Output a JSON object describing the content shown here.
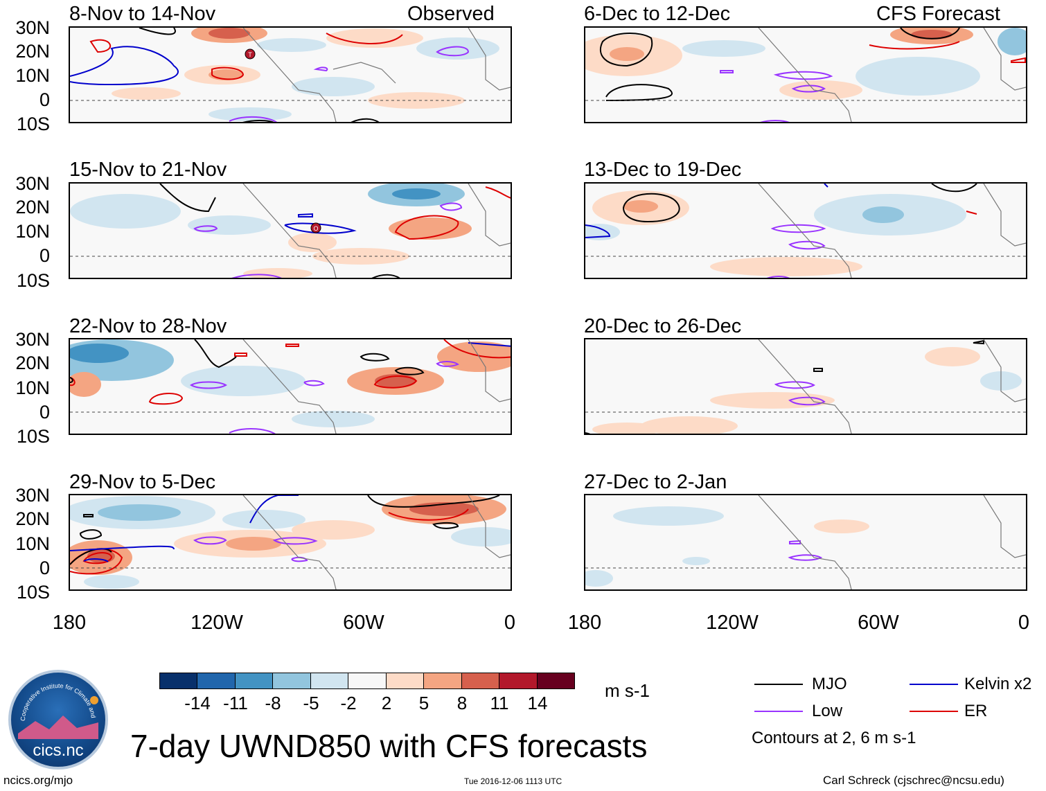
{
  "header": {
    "observed_label": "Observed",
    "forecast_label": "CFS Forecast"
  },
  "panels_left": [
    {
      "title": "8-Nov to 14-Nov"
    },
    {
      "title": "15-Nov to 21-Nov"
    },
    {
      "title": "22-Nov to 28-Nov"
    },
    {
      "title": "29-Nov to 5-Dec"
    }
  ],
  "panels_right": [
    {
      "title": "6-Dec to 12-Dec"
    },
    {
      "title": "13-Dec to 19-Dec"
    },
    {
      "title": "20-Dec to 26-Dec"
    },
    {
      "title": "27-Dec to 2-Jan"
    }
  ],
  "axes": {
    "lat_ticks": [
      "30N",
      "20N",
      "10N",
      "0",
      "10S"
    ],
    "lon_ticks": [
      "180",
      "120W",
      "60W",
      "0"
    ]
  },
  "storm_markers": {
    "marker1": "T",
    "marker2": "O"
  },
  "colorbar": {
    "ticks": [
      "-14",
      "-11",
      "-8",
      "-5",
      "-2",
      "2",
      "5",
      "8",
      "11",
      "14"
    ],
    "colors": [
      "#08306b",
      "#2166ac",
      "#4393c3",
      "#92c5de",
      "#d1e5f0",
      "#f7f7f7",
      "#fddbc7",
      "#f4a582",
      "#d6604d",
      "#b2182b",
      "#67001f"
    ],
    "units": "m s-1"
  },
  "legend": {
    "mjo": {
      "label": "MJO",
      "color": "#000000"
    },
    "kelvin": {
      "label": "Kelvin x2",
      "color": "#0000cc"
    },
    "low": {
      "label": "Low",
      "color": "#9933ff"
    },
    "er": {
      "label": "ER",
      "color": "#dd0000"
    },
    "contours_note": "Contours at 2, 6 m s-1"
  },
  "title": "7-day UWND850 with CFS forecasts",
  "logo_text": "cics.nc",
  "logo_ring_text": "Cooperative Institute for Climate and Satellites",
  "footer": {
    "url": "ncics.org/mjo",
    "timestamp": "Tue 2016-12-06 1113 UTC",
    "author": "Carl Schreck (cjschrec@ncsu.edu)"
  }
}
